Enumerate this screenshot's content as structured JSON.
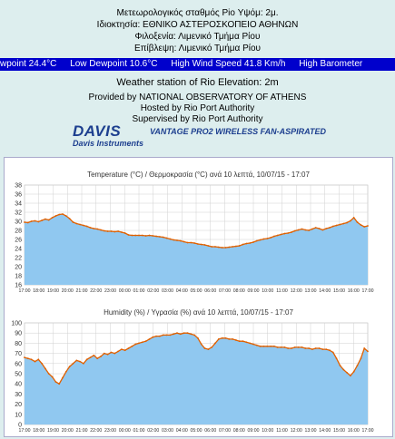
{
  "header": {
    "line1": "Μετεωρολογικός σταθμός Pio Υψόμ: 2μ.",
    "line2": "Ιδιοκτησία: ΕΘΝΙΚΟ ΑΣΤΕΡΟΣΚΟΠΕΙΟ ΑΘΗΝΩΝ",
    "line3": "Φιλοξενία: Λιμενικό Τμήμα Ρίου",
    "line4": "Επίβλεψη: Λιμενικό Τμήμα Ρίου"
  },
  "ticker": {
    "items": [
      "wpoint 24.4°C",
      "Low Dewpoint 10.6°C",
      "High Wind Speed 41.8 Km/h",
      "High Barometer"
    ]
  },
  "info": {
    "station": "Weather station of Rio Elevation: 2m",
    "provided": "Provided by NATIONAL OBSERVATORY OF ATHENS",
    "hosted": "Hosted by Rio Port Authority",
    "supervised": "Supervised by Rio Port Authority",
    "logo_big": "DAVIS",
    "logo_small": "Davis Instruments",
    "tagline": "VANTAGE PRO2  WIRELESS  FAN-ASPIRATED"
  },
  "colors": {
    "ticker_bg": "#0000cc",
    "fill": "#90c8f0",
    "line": "#e06000",
    "brand": "#1d3f8f"
  },
  "chart_data": [
    {
      "type": "area",
      "title": "Temperature (°C) / Θερμοκρασία (°C) ανά 10 λεπτά,  10/07/15 - 17:07",
      "ylim": [
        16,
        38
      ],
      "yticks": [
        16,
        18,
        20,
        22,
        24,
        26,
        28,
        30,
        32,
        34,
        36,
        38
      ],
      "x_ticks": [
        "17:00",
        "18:00",
        "19:00",
        "20:00",
        "21:00",
        "22:00",
        "23:00",
        "00:00",
        "01:00",
        "02:00",
        "03:00",
        "04:00",
        "05:00",
        "06:00",
        "07:00",
        "08:00",
        "09:00",
        "10:00",
        "11:00",
        "12:00",
        "13:00",
        "14:00",
        "15:00",
        "16:00",
        "17:00"
      ],
      "grid": true,
      "values": [
        29.8,
        29.7,
        30.0,
        30.1,
        29.9,
        30.2,
        30.5,
        30.3,
        30.8,
        31.2,
        31.5,
        31.6,
        31.2,
        30.6,
        29.8,
        29.5,
        29.3,
        29.1,
        28.9,
        28.6,
        28.4,
        28.3,
        28.1,
        27.9,
        27.8,
        27.8,
        27.7,
        27.8,
        27.6,
        27.4,
        27.0,
        26.9,
        26.9,
        26.9,
        26.9,
        26.8,
        26.9,
        26.8,
        26.7,
        26.6,
        26.5,
        26.3,
        26.1,
        25.9,
        25.8,
        25.7,
        25.5,
        25.3,
        25.3,
        25.2,
        25.0,
        24.9,
        24.8,
        24.6,
        24.4,
        24.4,
        24.3,
        24.2,
        24.2,
        24.3,
        24.4,
        24.5,
        24.6,
        24.9,
        25.1,
        25.2,
        25.4,
        25.7,
        25.9,
        26.1,
        26.2,
        26.4,
        26.7,
        26.9,
        27.1,
        27.3,
        27.4,
        27.6,
        27.9,
        28.1,
        28.3,
        28.1,
        28.0,
        28.3,
        28.6,
        28.4,
        28.1,
        28.4,
        28.6,
        28.9,
        29.1,
        29.3,
        29.5,
        29.7,
        30.1,
        30.8,
        29.8,
        29.2,
        28.8,
        29.0
      ]
    },
    {
      "type": "area",
      "title": "Humidity (%) / Υγρασία (%) ανά 10 λεπτά,  10/07/15 - 17:07",
      "ylim": [
        0,
        100
      ],
      "yticks": [
        0,
        10,
        20,
        30,
        40,
        50,
        60,
        70,
        80,
        90,
        100
      ],
      "x_ticks": [
        "17:00",
        "18:00",
        "19:00",
        "20:00",
        "21:00",
        "22:00",
        "23:00",
        "00:00",
        "01:00",
        "02:00",
        "03:00",
        "04:00",
        "05:00",
        "06:00",
        "07:00",
        "08:00",
        "09:00",
        "10:00",
        "11:00",
        "12:00",
        "13:00",
        "14:00",
        "15:00",
        "16:00",
        "17:00"
      ],
      "grid": true,
      "values": [
        66,
        65,
        64,
        62,
        64,
        60,
        55,
        50,
        47,
        42,
        40,
        46,
        52,
        57,
        60,
        63,
        62,
        60,
        64,
        66,
        68,
        65,
        67,
        70,
        69,
        71,
        70,
        72,
        74,
        73,
        75,
        77,
        79,
        80,
        81,
        82,
        84,
        86,
        87,
        87,
        88,
        88,
        88,
        89,
        90,
        89,
        90,
        90,
        89,
        88,
        85,
        79,
        75,
        74,
        76,
        80,
        84,
        85,
        85,
        84,
        84,
        83,
        82,
        82,
        81,
        80,
        79,
        78,
        77,
        77,
        77,
        77,
        77,
        76,
        76,
        76,
        75,
        75,
        76,
        76,
        76,
        75,
        75,
        74,
        75,
        75,
        74,
        74,
        73,
        71,
        65,
        58,
        54,
        51,
        48,
        52,
        58,
        65,
        75,
        72
      ]
    }
  ]
}
